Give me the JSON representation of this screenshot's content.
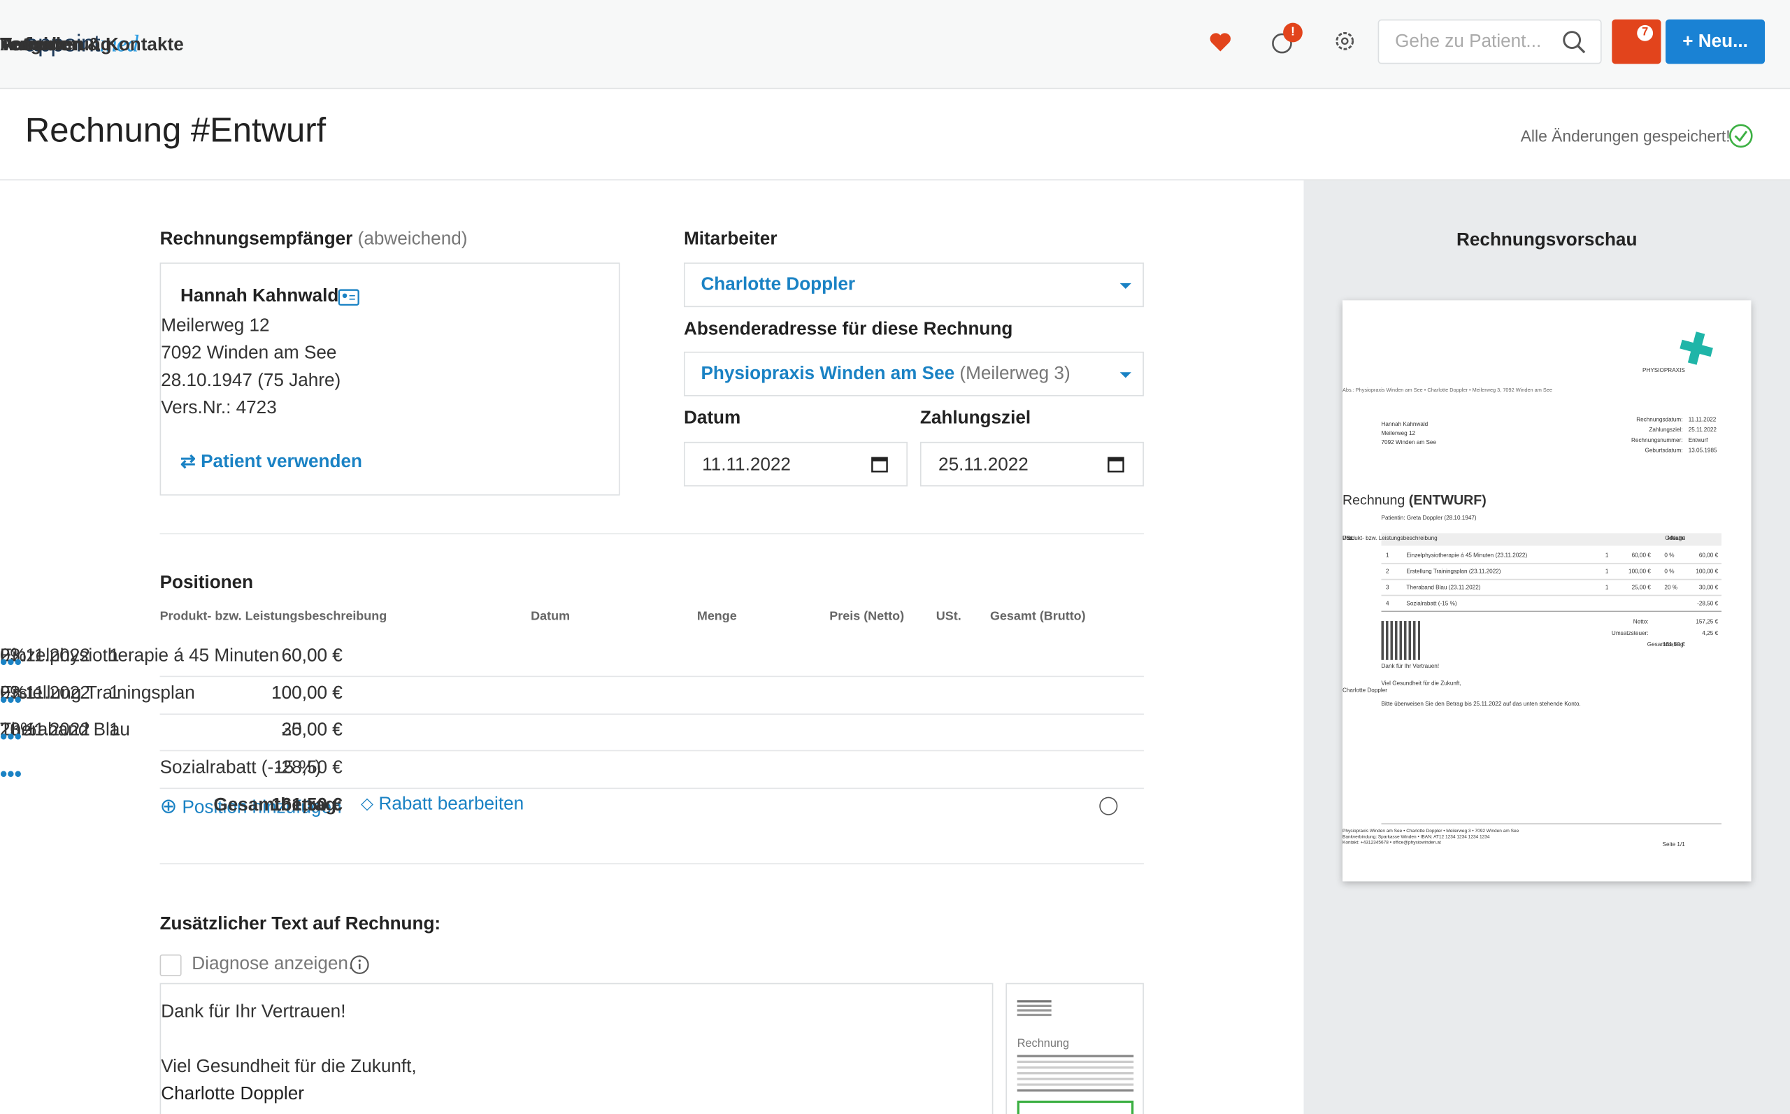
{
  "nav": {
    "logo_a": "appoint",
    "logo_b": "med",
    "links": [
      "Termine",
      "Patienten & Kontakte",
      "Verrechnung",
      "Aufgaben"
    ],
    "help_badge": "!",
    "notif_badge": "7",
    "search_placeholder": "Gehe zu Patient...",
    "new_button": "Neu..."
  },
  "header": {
    "title": "Rechnung #Entwurf",
    "status": "Alle Änderungen gespeichert!"
  },
  "recipient": {
    "label": "Rechnungsempfänger",
    "label_note": "(abweichend)",
    "name": "Hannah Kahnwald",
    "lines": [
      "Meilerweg 12",
      "7092 Winden am See",
      "28.10.1947 (75 Jahre)",
      "Vers.Nr.: 4723"
    ],
    "action": "Patient verwenden"
  },
  "employee": {
    "label": "Mitarbeiter",
    "value": "Charlotte Doppler"
  },
  "sender": {
    "label": "Absenderadresse für diese Rechnung",
    "value": "Physiopraxis Winden am See",
    "note": "(Meilerweg 3)"
  },
  "date": {
    "label": "Datum",
    "value": "11.11.2022"
  },
  "due": {
    "label": "Zahlungsziel",
    "value": "25.11.2022"
  },
  "positions": {
    "title": "Positionen",
    "columns": [
      "Produkt- bzw. Leistungsbeschreibung",
      "Datum",
      "Menge",
      "Preis (Netto)",
      "USt.",
      "Gesamt (Brutto)"
    ],
    "rows": [
      [
        "Einzelphysiotherapie á 45 Minuten",
        "23.11.2022",
        "1",
        "60,00 €",
        "0%",
        "60,00 €"
      ],
      [
        "Erstellung Trainingsplan",
        "23.11.2022",
        "1",
        "100,00 €",
        "0%",
        "100,00 €"
      ],
      [
        "Theraband Blau",
        "23.11.2022",
        "1",
        "25,00 €",
        "20%",
        "30,00 €"
      ]
    ],
    "discount": [
      "Sozialrabatt (-15 %)",
      "-28,50 €"
    ],
    "add": "Position hinzufügen",
    "edit_discount": "Rabatt bearbeiten",
    "total_label": "Gesamtbetrag:",
    "total": "161,50 €"
  },
  "extra": {
    "title": "Zusätzlicher Text auf Rechnung:",
    "checkbox": "Diagnose anzeigen.",
    "text": [
      "Dank für Ihr Vertrauen!",
      "Viel Gesundheit für die Zukunft,",
      "Charlotte Doppler"
    ],
    "thumb_label": "Rechnung"
  },
  "preview": {
    "title": "Rechnungsvorschau",
    "brand": "PHYSIOPRAXIS",
    "sender_line": "Abs.: Physiopraxis Winden am See • Charlotte Doppler • Meilerweg 3, 7092 Winden am See",
    "address": [
      "Hannah Kahnwald",
      "Meilerweg 12",
      "7092 Winden am See"
    ],
    "meta": [
      [
        "Rechnungsdatum:",
        "11.11.2022"
      ],
      [
        "Zahlungsziel:",
        "25.11.2022"
      ],
      [
        "Rechnungsnummer:",
        "Entwurf"
      ],
      [
        "Geburtsdatum:",
        "13.05.1985"
      ]
    ],
    "heading": "Rechnung",
    "heading_note": "(ENTWURF)",
    "patient": "Patientin: Greta Doppler (28.10.1947)",
    "columns": [
      "Pos.",
      "Produkt- bzw. Leistungsbeschreibung",
      "Menge",
      "Netto",
      "USt.",
      "Gesamt"
    ],
    "rows": [
      [
        "1",
        "Einzelphysiotherapie á 45 Minuten (23.11.2022)",
        "1",
        "60,00 €",
        "0 %",
        "60,00 €"
      ],
      [
        "2",
        "Erstellung Trainingsplan (23.11.2022)",
        "1",
        "100,00 €",
        "0 %",
        "100,00 €"
      ],
      [
        "3",
        "Theraband Blau (23.11.2022)",
        "1",
        "25,00 €",
        "20 %",
        "30,00 €"
      ]
    ],
    "discount": [
      "4",
      "Sozialrabatt (-15 %)",
      "-28,50 €"
    ],
    "totals": [
      [
        "Netto:",
        "157,25 €"
      ],
      [
        "Umsatzsteuer:",
        "4,25 €"
      ],
      [
        "Gesamtbetrag:",
        "161,50 €"
      ]
    ],
    "closing": [
      "Dank für Ihr Vertrauen!",
      "Viel Gesundheit für die Zukunft,",
      "Charlotte Doppler",
      "Bitte überweisen Sie den Betrag bis 25.11.2022 auf das unten stehende Konto."
    ],
    "footer": [
      "Physiopraxis Winden am See • Charlotte Doppler • Meilerweg 3 • 7092 Winden am See",
      "Bankverbindung: Sparkasse Winden • IBAN: AT12 1234 1234 1234 1234",
      "Kontakt: +4312345678 • office@physiowinden.at"
    ],
    "page": "Seite 1/1"
  }
}
